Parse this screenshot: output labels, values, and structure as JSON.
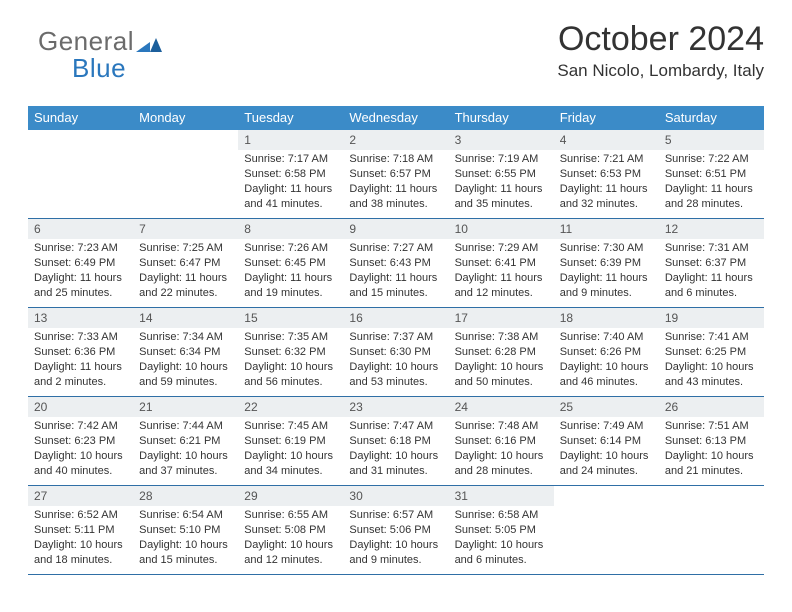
{
  "brand": {
    "line1": "General",
    "line2": "Blue"
  },
  "header": {
    "month_title": "October 2024",
    "location": "San Nicolo, Lombardy, Italy"
  },
  "colors": {
    "header_bg": "#3b8bc8",
    "daynum_bg": "#eceff1",
    "border": "#2f6fa6"
  },
  "dow": [
    "Sunday",
    "Monday",
    "Tuesday",
    "Wednesday",
    "Thursday",
    "Friday",
    "Saturday"
  ],
  "weeks": [
    [
      {
        "num": "",
        "sunrise": "",
        "sunset": "",
        "daylight1": "",
        "daylight2": ""
      },
      {
        "num": "",
        "sunrise": "",
        "sunset": "",
        "daylight1": "",
        "daylight2": ""
      },
      {
        "num": "1",
        "sunrise": "Sunrise: 7:17 AM",
        "sunset": "Sunset: 6:58 PM",
        "daylight1": "Daylight: 11 hours",
        "daylight2": "and 41 minutes."
      },
      {
        "num": "2",
        "sunrise": "Sunrise: 7:18 AM",
        "sunset": "Sunset: 6:57 PM",
        "daylight1": "Daylight: 11 hours",
        "daylight2": "and 38 minutes."
      },
      {
        "num": "3",
        "sunrise": "Sunrise: 7:19 AM",
        "sunset": "Sunset: 6:55 PM",
        "daylight1": "Daylight: 11 hours",
        "daylight2": "and 35 minutes."
      },
      {
        "num": "4",
        "sunrise": "Sunrise: 7:21 AM",
        "sunset": "Sunset: 6:53 PM",
        "daylight1": "Daylight: 11 hours",
        "daylight2": "and 32 minutes."
      },
      {
        "num": "5",
        "sunrise": "Sunrise: 7:22 AM",
        "sunset": "Sunset: 6:51 PM",
        "daylight1": "Daylight: 11 hours",
        "daylight2": "and 28 minutes."
      }
    ],
    [
      {
        "num": "6",
        "sunrise": "Sunrise: 7:23 AM",
        "sunset": "Sunset: 6:49 PM",
        "daylight1": "Daylight: 11 hours",
        "daylight2": "and 25 minutes."
      },
      {
        "num": "7",
        "sunrise": "Sunrise: 7:25 AM",
        "sunset": "Sunset: 6:47 PM",
        "daylight1": "Daylight: 11 hours",
        "daylight2": "and 22 minutes."
      },
      {
        "num": "8",
        "sunrise": "Sunrise: 7:26 AM",
        "sunset": "Sunset: 6:45 PM",
        "daylight1": "Daylight: 11 hours",
        "daylight2": "and 19 minutes."
      },
      {
        "num": "9",
        "sunrise": "Sunrise: 7:27 AM",
        "sunset": "Sunset: 6:43 PM",
        "daylight1": "Daylight: 11 hours",
        "daylight2": "and 15 minutes."
      },
      {
        "num": "10",
        "sunrise": "Sunrise: 7:29 AM",
        "sunset": "Sunset: 6:41 PM",
        "daylight1": "Daylight: 11 hours",
        "daylight2": "and 12 minutes."
      },
      {
        "num": "11",
        "sunrise": "Sunrise: 7:30 AM",
        "sunset": "Sunset: 6:39 PM",
        "daylight1": "Daylight: 11 hours",
        "daylight2": "and 9 minutes."
      },
      {
        "num": "12",
        "sunrise": "Sunrise: 7:31 AM",
        "sunset": "Sunset: 6:37 PM",
        "daylight1": "Daylight: 11 hours",
        "daylight2": "and 6 minutes."
      }
    ],
    [
      {
        "num": "13",
        "sunrise": "Sunrise: 7:33 AM",
        "sunset": "Sunset: 6:36 PM",
        "daylight1": "Daylight: 11 hours",
        "daylight2": "and 2 minutes."
      },
      {
        "num": "14",
        "sunrise": "Sunrise: 7:34 AM",
        "sunset": "Sunset: 6:34 PM",
        "daylight1": "Daylight: 10 hours",
        "daylight2": "and 59 minutes."
      },
      {
        "num": "15",
        "sunrise": "Sunrise: 7:35 AM",
        "sunset": "Sunset: 6:32 PM",
        "daylight1": "Daylight: 10 hours",
        "daylight2": "and 56 minutes."
      },
      {
        "num": "16",
        "sunrise": "Sunrise: 7:37 AM",
        "sunset": "Sunset: 6:30 PM",
        "daylight1": "Daylight: 10 hours",
        "daylight2": "and 53 minutes."
      },
      {
        "num": "17",
        "sunrise": "Sunrise: 7:38 AM",
        "sunset": "Sunset: 6:28 PM",
        "daylight1": "Daylight: 10 hours",
        "daylight2": "and 50 minutes."
      },
      {
        "num": "18",
        "sunrise": "Sunrise: 7:40 AM",
        "sunset": "Sunset: 6:26 PM",
        "daylight1": "Daylight: 10 hours",
        "daylight2": "and 46 minutes."
      },
      {
        "num": "19",
        "sunrise": "Sunrise: 7:41 AM",
        "sunset": "Sunset: 6:25 PM",
        "daylight1": "Daylight: 10 hours",
        "daylight2": "and 43 minutes."
      }
    ],
    [
      {
        "num": "20",
        "sunrise": "Sunrise: 7:42 AM",
        "sunset": "Sunset: 6:23 PM",
        "daylight1": "Daylight: 10 hours",
        "daylight2": "and 40 minutes."
      },
      {
        "num": "21",
        "sunrise": "Sunrise: 7:44 AM",
        "sunset": "Sunset: 6:21 PM",
        "daylight1": "Daylight: 10 hours",
        "daylight2": "and 37 minutes."
      },
      {
        "num": "22",
        "sunrise": "Sunrise: 7:45 AM",
        "sunset": "Sunset: 6:19 PM",
        "daylight1": "Daylight: 10 hours",
        "daylight2": "and 34 minutes."
      },
      {
        "num": "23",
        "sunrise": "Sunrise: 7:47 AM",
        "sunset": "Sunset: 6:18 PM",
        "daylight1": "Daylight: 10 hours",
        "daylight2": "and 31 minutes."
      },
      {
        "num": "24",
        "sunrise": "Sunrise: 7:48 AM",
        "sunset": "Sunset: 6:16 PM",
        "daylight1": "Daylight: 10 hours",
        "daylight2": "and 28 minutes."
      },
      {
        "num": "25",
        "sunrise": "Sunrise: 7:49 AM",
        "sunset": "Sunset: 6:14 PM",
        "daylight1": "Daylight: 10 hours",
        "daylight2": "and 24 minutes."
      },
      {
        "num": "26",
        "sunrise": "Sunrise: 7:51 AM",
        "sunset": "Sunset: 6:13 PM",
        "daylight1": "Daylight: 10 hours",
        "daylight2": "and 21 minutes."
      }
    ],
    [
      {
        "num": "27",
        "sunrise": "Sunrise: 6:52 AM",
        "sunset": "Sunset: 5:11 PM",
        "daylight1": "Daylight: 10 hours",
        "daylight2": "and 18 minutes."
      },
      {
        "num": "28",
        "sunrise": "Sunrise: 6:54 AM",
        "sunset": "Sunset: 5:10 PM",
        "daylight1": "Daylight: 10 hours",
        "daylight2": "and 15 minutes."
      },
      {
        "num": "29",
        "sunrise": "Sunrise: 6:55 AM",
        "sunset": "Sunset: 5:08 PM",
        "daylight1": "Daylight: 10 hours",
        "daylight2": "and 12 minutes."
      },
      {
        "num": "30",
        "sunrise": "Sunrise: 6:57 AM",
        "sunset": "Sunset: 5:06 PM",
        "daylight1": "Daylight: 10 hours",
        "daylight2": "and 9 minutes."
      },
      {
        "num": "31",
        "sunrise": "Sunrise: 6:58 AM",
        "sunset": "Sunset: 5:05 PM",
        "daylight1": "Daylight: 10 hours",
        "daylight2": "and 6 minutes."
      },
      {
        "num": "",
        "sunrise": "",
        "sunset": "",
        "daylight1": "",
        "daylight2": ""
      },
      {
        "num": "",
        "sunrise": "",
        "sunset": "",
        "daylight1": "",
        "daylight2": ""
      }
    ]
  ]
}
